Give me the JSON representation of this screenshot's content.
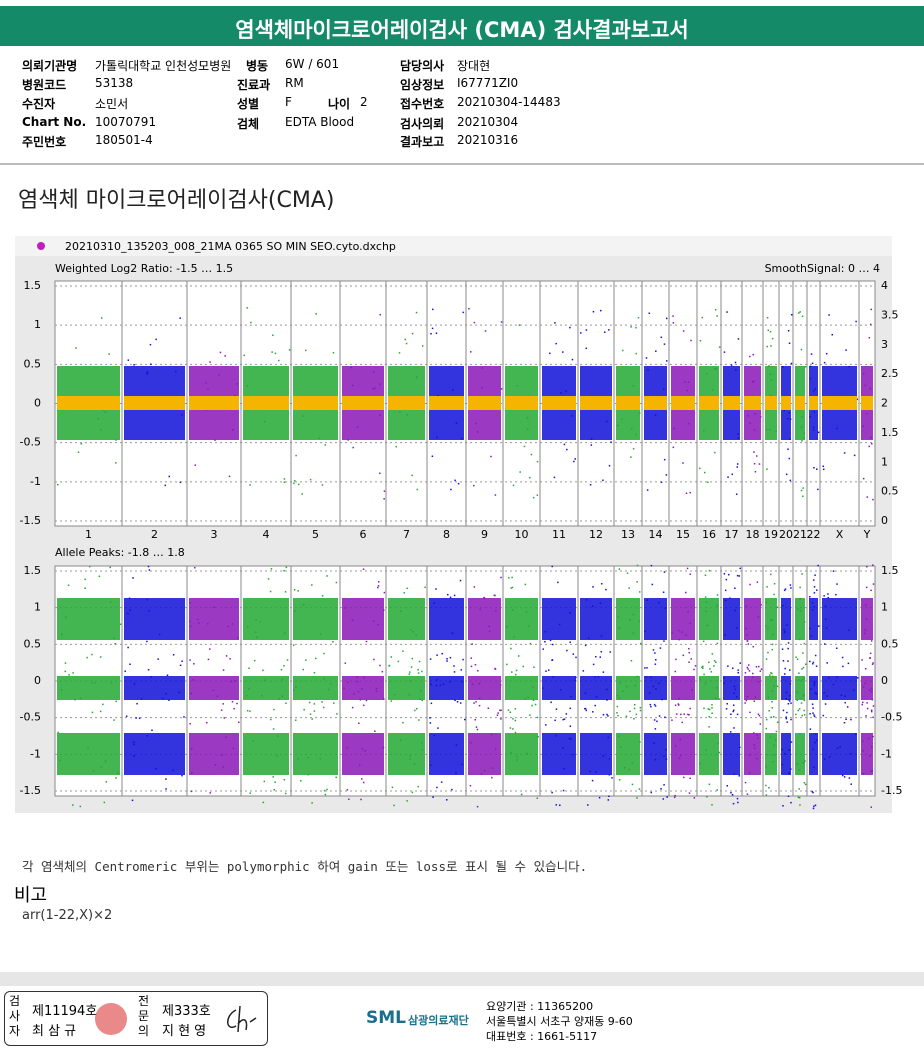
{
  "header": {
    "title": "염색체마이크로어레이검사 (CMA) 검사결과보고서"
  },
  "info": {
    "hospital": {
      "label": "의뢰기관명",
      "value": "가톨릭대학교 인천성모병원"
    },
    "code": {
      "label": "병원코드",
      "value": "53138"
    },
    "patient": {
      "label": "수진자",
      "value": "소민서"
    },
    "chart": {
      "label": "Chart No.",
      "value": "10070791"
    },
    "rrn": {
      "label": "주민번호",
      "value": "180501-4"
    },
    "ward": {
      "label": "병동",
      "value": "6W / 601"
    },
    "dept": {
      "label": "진료과",
      "value": "RM"
    },
    "sex": {
      "label": "성별",
      "value": "F"
    },
    "age": {
      "label": "나이",
      "value": "2"
    },
    "specimen": {
      "label": "검체",
      "value": "EDTA Blood"
    },
    "doctor": {
      "label": "담당의사",
      "value": "장대현"
    },
    "clinical": {
      "label": "임상정보",
      "value": "I67771ZI0"
    },
    "receipt": {
      "label": "접수번호",
      "value": "20210304-14483"
    },
    "request": {
      "label": "검사의뢰",
      "value": "20210304"
    },
    "report": {
      "label": "결과보고",
      "value": "20210316"
    }
  },
  "section_title": "염색체 마이크로어레이검사(CMA)",
  "plot": {
    "file_name": "20210310_135203_008_21MA 0365 SO MIN SEO.cyto.dxchp",
    "top_label": "Weighted Log2 Ratio: -1.5 … 1.5",
    "top_right_label": "SmoothSignal: 0 … 4",
    "top_left_ticks": [
      "1.5",
      "1",
      "0.5",
      "0",
      "-0.5",
      "-1",
      "-1.5"
    ],
    "top_right_ticks": [
      "4",
      "3.5",
      "3",
      "2.5",
      "2",
      "1.5",
      "1",
      "0.5",
      "0"
    ],
    "chromosomes": [
      "1",
      "2",
      "3",
      "4",
      "5",
      "6",
      "7",
      "8",
      "9",
      "10",
      "11",
      "12",
      "13",
      "14",
      "15",
      "16",
      "17",
      "18",
      "19",
      "20",
      "21",
      "22",
      "X",
      "Y"
    ],
    "bottom_label": "Allele Peaks: -1.8 … 1.8",
    "bottom_left_ticks": [
      "1.5",
      "1",
      "0.5",
      "0",
      "-0.5",
      "-1",
      "-1.5"
    ],
    "bottom_right_ticks": [
      "1.5",
      "1",
      "0.5",
      "0",
      "-0.5",
      "-1",
      "-1.5"
    ]
  },
  "note": "각 염색체의 Centromeric 부위는 polymorphic 하여 gain 또는 loss로 표시 될 수 있습니다.",
  "remark_title": "비고",
  "remark_text": "arr(1-22,X)×2",
  "footer": {
    "examiner_title": "검사자",
    "examiner_no": "제11194호",
    "examiner_name": "최 삼 규",
    "specialist_title": "전문의",
    "specialist_no": "제333호",
    "specialist_name": "지 현 영",
    "logo": "SML",
    "org": "삼광의료재단",
    "inst": "요양기관 : 11365200",
    "addr": "서울특별시 서초구 양재동 9-60",
    "tel": "대표번호 : 1661-5117"
  }
}
